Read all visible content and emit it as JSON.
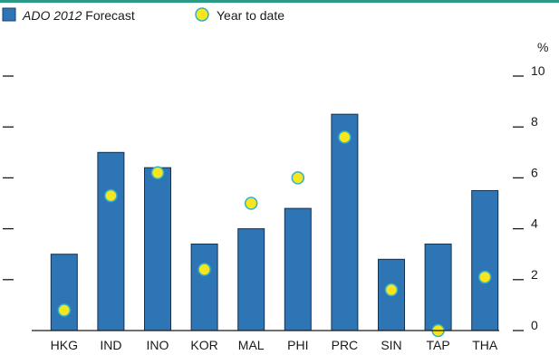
{
  "chart_data": {
    "type": "bar",
    "categories": [
      "HKG",
      "IND",
      "INO",
      "KOR",
      "MAL",
      "PHI",
      "PRC",
      "SIN",
      "TAP",
      "THA"
    ],
    "series": [
      {
        "name_italic": "ADO 2012",
        "name_rest": " Forecast",
        "kind": "bar",
        "color": "#2e75b6",
        "values": [
          3.0,
          7.0,
          6.4,
          3.4,
          4.0,
          4.8,
          8.5,
          2.8,
          3.4,
          5.5
        ]
      },
      {
        "name": "Year to date",
        "kind": "marker",
        "color": "#f5e61e",
        "edge_color": "#33b0c8",
        "values": [
          0.8,
          5.3,
          6.2,
          2.4,
          5.0,
          6.0,
          7.6,
          1.6,
          0.0,
          2.1
        ]
      }
    ],
    "ylim": [
      0,
      10
    ],
    "yticks": [
      0,
      2,
      4,
      6,
      8,
      10
    ],
    "unit_label": "%",
    "legend_position": "top-left",
    "grid": false
  }
}
